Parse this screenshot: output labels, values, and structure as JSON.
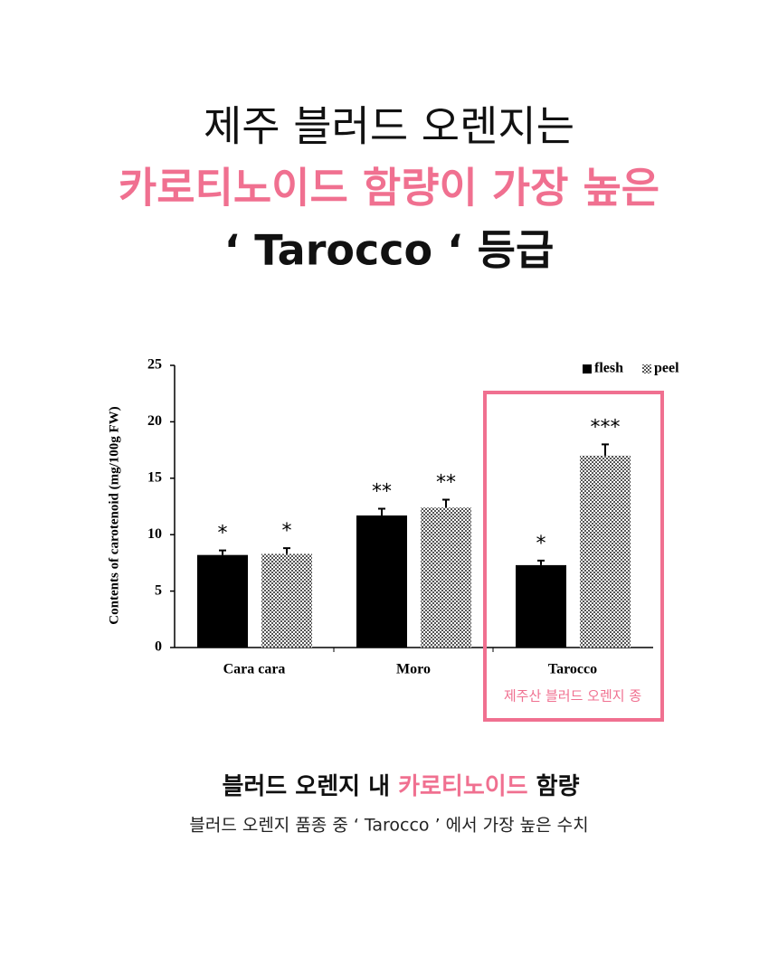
{
  "header": {
    "line1": "제주 블러드 오렌지는",
    "line2": "카로티노이드 함량이 가장 높은",
    "line3": "‘ Tarocco ‘ 등급"
  },
  "chart_data": {
    "type": "bar",
    "ylabel": "Contents of carotenoid (mg/100g FW)",
    "categories": [
      "Cara cara",
      "Moro",
      "Tarocco"
    ],
    "series": [
      {
        "name": "flesh",
        "color": "#000000",
        "values": [
          8.2,
          11.7,
          7.3
        ],
        "errors": [
          0.4,
          0.6,
          0.4
        ],
        "significance": [
          "*",
          "**",
          "*"
        ]
      },
      {
        "name": "peel",
        "color": "#9a9a9a",
        "values": [
          8.3,
          12.4,
          17.0
        ],
        "errors": [
          0.5,
          0.7,
          1.0
        ],
        "significance": [
          "*",
          "**",
          "***"
        ]
      }
    ],
    "ylim": [
      0,
      25
    ],
    "yticks": [
      0,
      5,
      10,
      15,
      20,
      25
    ],
    "grid": false,
    "legend": "top-right",
    "highlight": {
      "category": 2,
      "label": "제주산 블러드 오렌지 종",
      "color": "#f07090"
    }
  },
  "caption": {
    "title_parts": [
      "블러드 오렌지 내 ",
      "카로티노이드",
      " 함량"
    ],
    "subtitle": "블러드 오렌지 품종 중 ‘ Tarocco ’ 에서 가장 높은 수치"
  }
}
